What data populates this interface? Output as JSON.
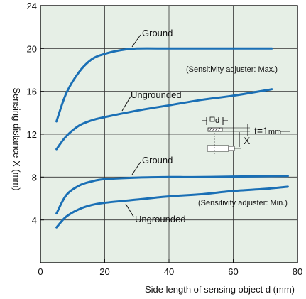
{
  "chart_data": {
    "type": "line",
    "title": "",
    "xlabel": "Side length of sensing object d (mm)",
    "ylabel": "Sensing distance X (mm)",
    "xlim": [
      0,
      80
    ],
    "ylim": [
      0,
      24
    ],
    "x_ticks": [
      "0",
      "20",
      "40",
      "60",
      "80"
    ],
    "y_ticks": [
      "4",
      "8",
      "12",
      "16",
      "20",
      "24"
    ],
    "grid": true,
    "background_color": "#e6efe6",
    "series_color": "#1a6fb5",
    "series": [
      {
        "name": "Ground",
        "group": "Sensitivity adjuster: Max.",
        "x": [
          5,
          8,
          12,
          16,
          20,
          25,
          30,
          40,
          50,
          60,
          72
        ],
        "y": [
          13.2,
          15.8,
          17.8,
          19.0,
          19.5,
          19.85,
          20.0,
          20.0,
          20.0,
          20.0,
          20.0
        ]
      },
      {
        "name": "Ungrounded",
        "group": "Sensitivity adjuster: Max.",
        "x": [
          5,
          8,
          12,
          16,
          20,
          30,
          40,
          50,
          60,
          72
        ],
        "y": [
          10.6,
          11.8,
          12.8,
          13.3,
          13.6,
          14.2,
          14.7,
          15.2,
          15.6,
          16.2
        ]
      },
      {
        "name": "Ground",
        "group": "Sensitivity adjuster: Min.",
        "x": [
          5,
          8,
          12,
          16,
          20,
          30,
          40,
          50,
          60,
          77
        ],
        "y": [
          4.6,
          6.3,
          7.2,
          7.6,
          7.8,
          7.95,
          8.0,
          8.0,
          8.05,
          8.1
        ]
      },
      {
        "name": "Ungrounded",
        "group": "Sensitivity adjuster: Min.",
        "x": [
          5,
          8,
          12,
          16,
          20,
          30,
          40,
          50,
          60,
          70,
          77
        ],
        "y": [
          3.3,
          4.3,
          5.0,
          5.4,
          5.6,
          5.9,
          6.2,
          6.4,
          6.7,
          6.9,
          7.1
        ]
      }
    ],
    "annotations": {
      "max_note": "(Sensitivity adjuster: Max.)",
      "min_note": "(Sensitivity adjuster: Min.)",
      "label_ground_max": "Ground",
      "label_ungrounded_max": "Ungrounded",
      "label_ground_min": "Ground",
      "label_ungrounded_min": "Ungrounded"
    },
    "inset": {
      "d_label": "d",
      "x_label": "X",
      "t_label": "t=1",
      "t_unit": "mm"
    }
  }
}
